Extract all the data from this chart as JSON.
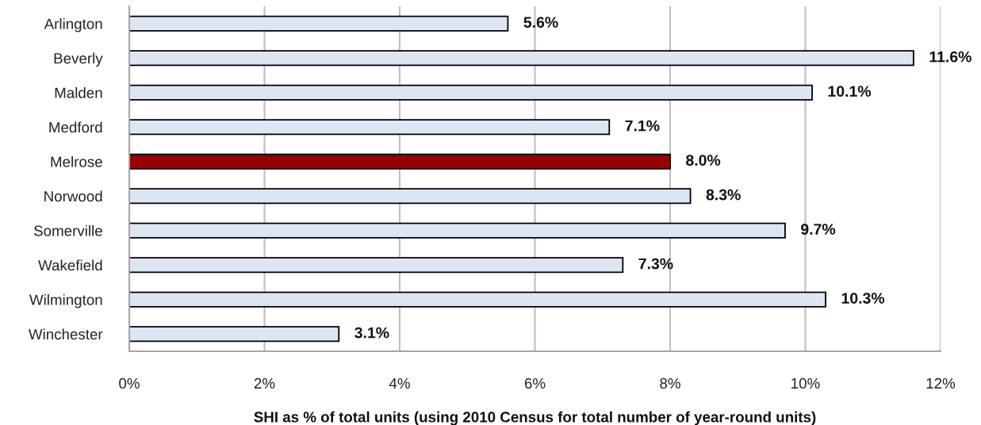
{
  "chart_data": {
    "type": "bar",
    "orientation": "horizontal",
    "xlabel": "SHI as % of total units (using 2010 Census for total number of year-round units)",
    "categories": [
      "Arlington",
      "Beverly",
      "Malden",
      "Medford",
      "Melrose",
      "Norwood",
      "Somerville",
      "Wakefield",
      "Wilmington",
      "Winchester"
    ],
    "values": [
      5.6,
      11.6,
      10.1,
      7.1,
      8.0,
      8.3,
      9.7,
      7.3,
      10.3,
      3.1
    ],
    "value_labels": [
      "5.6%",
      "11.6%",
      "10.1%",
      "7.1%",
      "8.0%",
      "8.3%",
      "9.7%",
      "7.3%",
      "10.3%",
      "3.1%"
    ],
    "colors": [
      "#dce6f2",
      "#dce6f2",
      "#dce6f2",
      "#dce6f2",
      "#990000",
      "#dce6f2",
      "#dce6f2",
      "#dce6f2",
      "#dce6f2",
      "#dce6f2"
    ],
    "xlim": [
      0,
      12
    ],
    "xticks": [
      {
        "value": 0,
        "label": "0%"
      },
      {
        "value": 2,
        "label": "2%"
      },
      {
        "value": 4,
        "label": "4%"
      },
      {
        "value": 6,
        "label": "6%"
      },
      {
        "value": 8,
        "label": "8%"
      },
      {
        "value": 10,
        "label": "10%"
      },
      {
        "value": 12,
        "label": "12%"
      }
    ],
    "grid": "x",
    "legend": false
  }
}
